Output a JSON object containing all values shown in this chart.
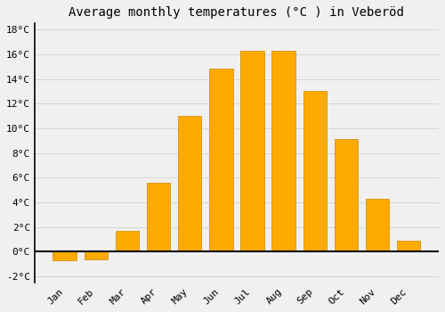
{
  "months": [
    "Jan",
    "Feb",
    "Mar",
    "Apr",
    "May",
    "Jun",
    "Jul",
    "Aug",
    "Sep",
    "Oct",
    "Nov",
    "Dec"
  ],
  "values": [
    -0.7,
    -0.6,
    1.7,
    5.6,
    11.0,
    14.8,
    16.3,
    16.3,
    13.0,
    9.1,
    4.3,
    0.9
  ],
  "bar_color": "#FFAA00",
  "bar_edge_color": "#CC8800",
  "title": "Average monthly temperatures (°C ) in Veberöd",
  "ylim": [
    -2.5,
    18.5
  ],
  "yticks": [
    -2,
    0,
    2,
    4,
    6,
    8,
    10,
    12,
    14,
    16,
    18
  ],
  "background_color": "#f0f0f0",
  "grid_color": "#d0d0d0",
  "title_fontsize": 10,
  "tick_fontsize": 8,
  "zero_line_color": "#000000",
  "spine_color": "#000000",
  "bar_width": 0.75
}
